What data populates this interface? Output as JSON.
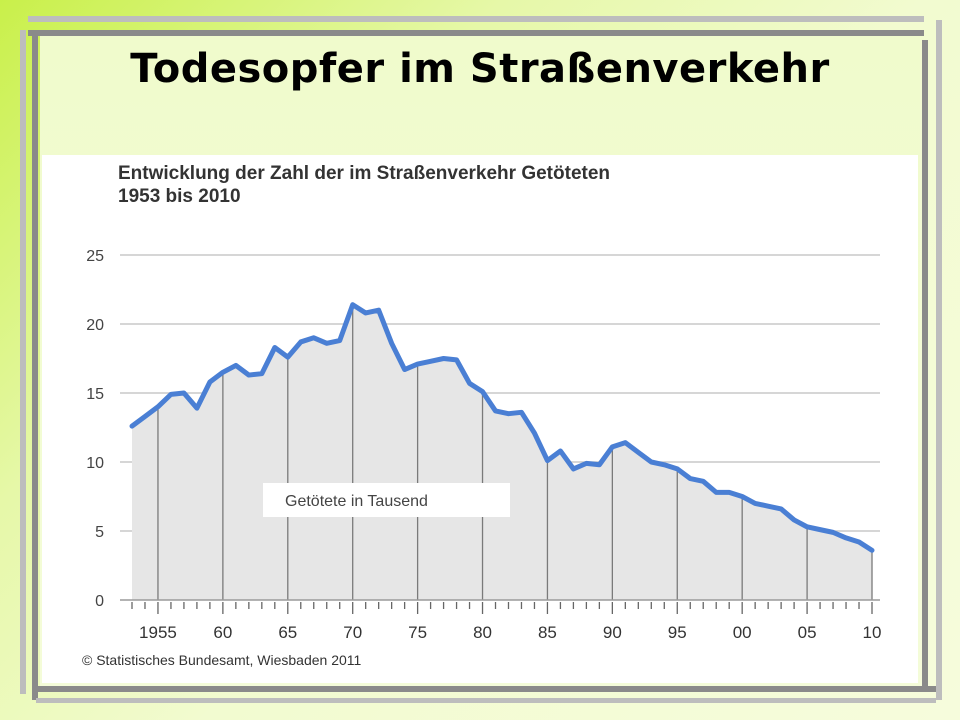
{
  "slide_title": "Todesopfer im Straßenverkehr",
  "chart_data": {
    "type": "area",
    "title_line1": "Entwicklung der Zahl der im Straßenverkehr Getöteten",
    "title_line2": "1953 bis 2010",
    "annotation": "Getötete in Tausend",
    "source": "© Statistisches Bundesamt, Wiesbaden 2011",
    "ylim": [
      0,
      25
    ],
    "y_ticks": [
      0,
      5,
      10,
      15,
      20,
      25
    ],
    "y_tick_labels": [
      "0",
      "5",
      "10",
      "15",
      "20",
      "25"
    ],
    "xlim": [
      1953,
      2010
    ],
    "x_tick_years": [
      1955,
      1960,
      1965,
      1970,
      1975,
      1980,
      1985,
      1990,
      1995,
      2000,
      2005,
      2010
    ],
    "x_tick_labels": [
      "1955",
      "60",
      "65",
      "70",
      "75",
      "80",
      "85",
      "90",
      "95",
      "00",
      "05",
      "10"
    ],
    "grid": true,
    "line_color": "#4a7fd4",
    "fill_color": "#e6e6e6",
    "x": [
      1953,
      1954,
      1955,
      1956,
      1957,
      1958,
      1959,
      1960,
      1961,
      1962,
      1963,
      1964,
      1965,
      1966,
      1967,
      1968,
      1969,
      1970,
      1971,
      1972,
      1973,
      1974,
      1975,
      1976,
      1977,
      1978,
      1979,
      1980,
      1981,
      1982,
      1983,
      1984,
      1985,
      1986,
      1987,
      1988,
      1989,
      1990,
      1991,
      1992,
      1993,
      1994,
      1995,
      1996,
      1997,
      1998,
      1999,
      2000,
      2001,
      2002,
      2003,
      2004,
      2005,
      2006,
      2007,
      2008,
      2009,
      2010
    ],
    "values": [
      12.6,
      13.3,
      14.0,
      14.9,
      15.0,
      13.9,
      15.8,
      16.5,
      17.0,
      16.3,
      16.4,
      18.3,
      17.6,
      18.7,
      19.0,
      18.6,
      18.8,
      21.4,
      20.8,
      21.0,
      18.6,
      16.7,
      17.1,
      17.3,
      17.5,
      17.4,
      15.7,
      15.1,
      13.7,
      13.5,
      13.6,
      12.1,
      10.1,
      10.8,
      9.5,
      9.9,
      9.8,
      11.1,
      11.4,
      10.7,
      10.0,
      9.8,
      9.5,
      8.8,
      8.6,
      7.8,
      7.8,
      7.5,
      7.0,
      6.8,
      6.6,
      5.8,
      5.3,
      5.1,
      4.9,
      4.5,
      4.2,
      3.6
    ]
  }
}
